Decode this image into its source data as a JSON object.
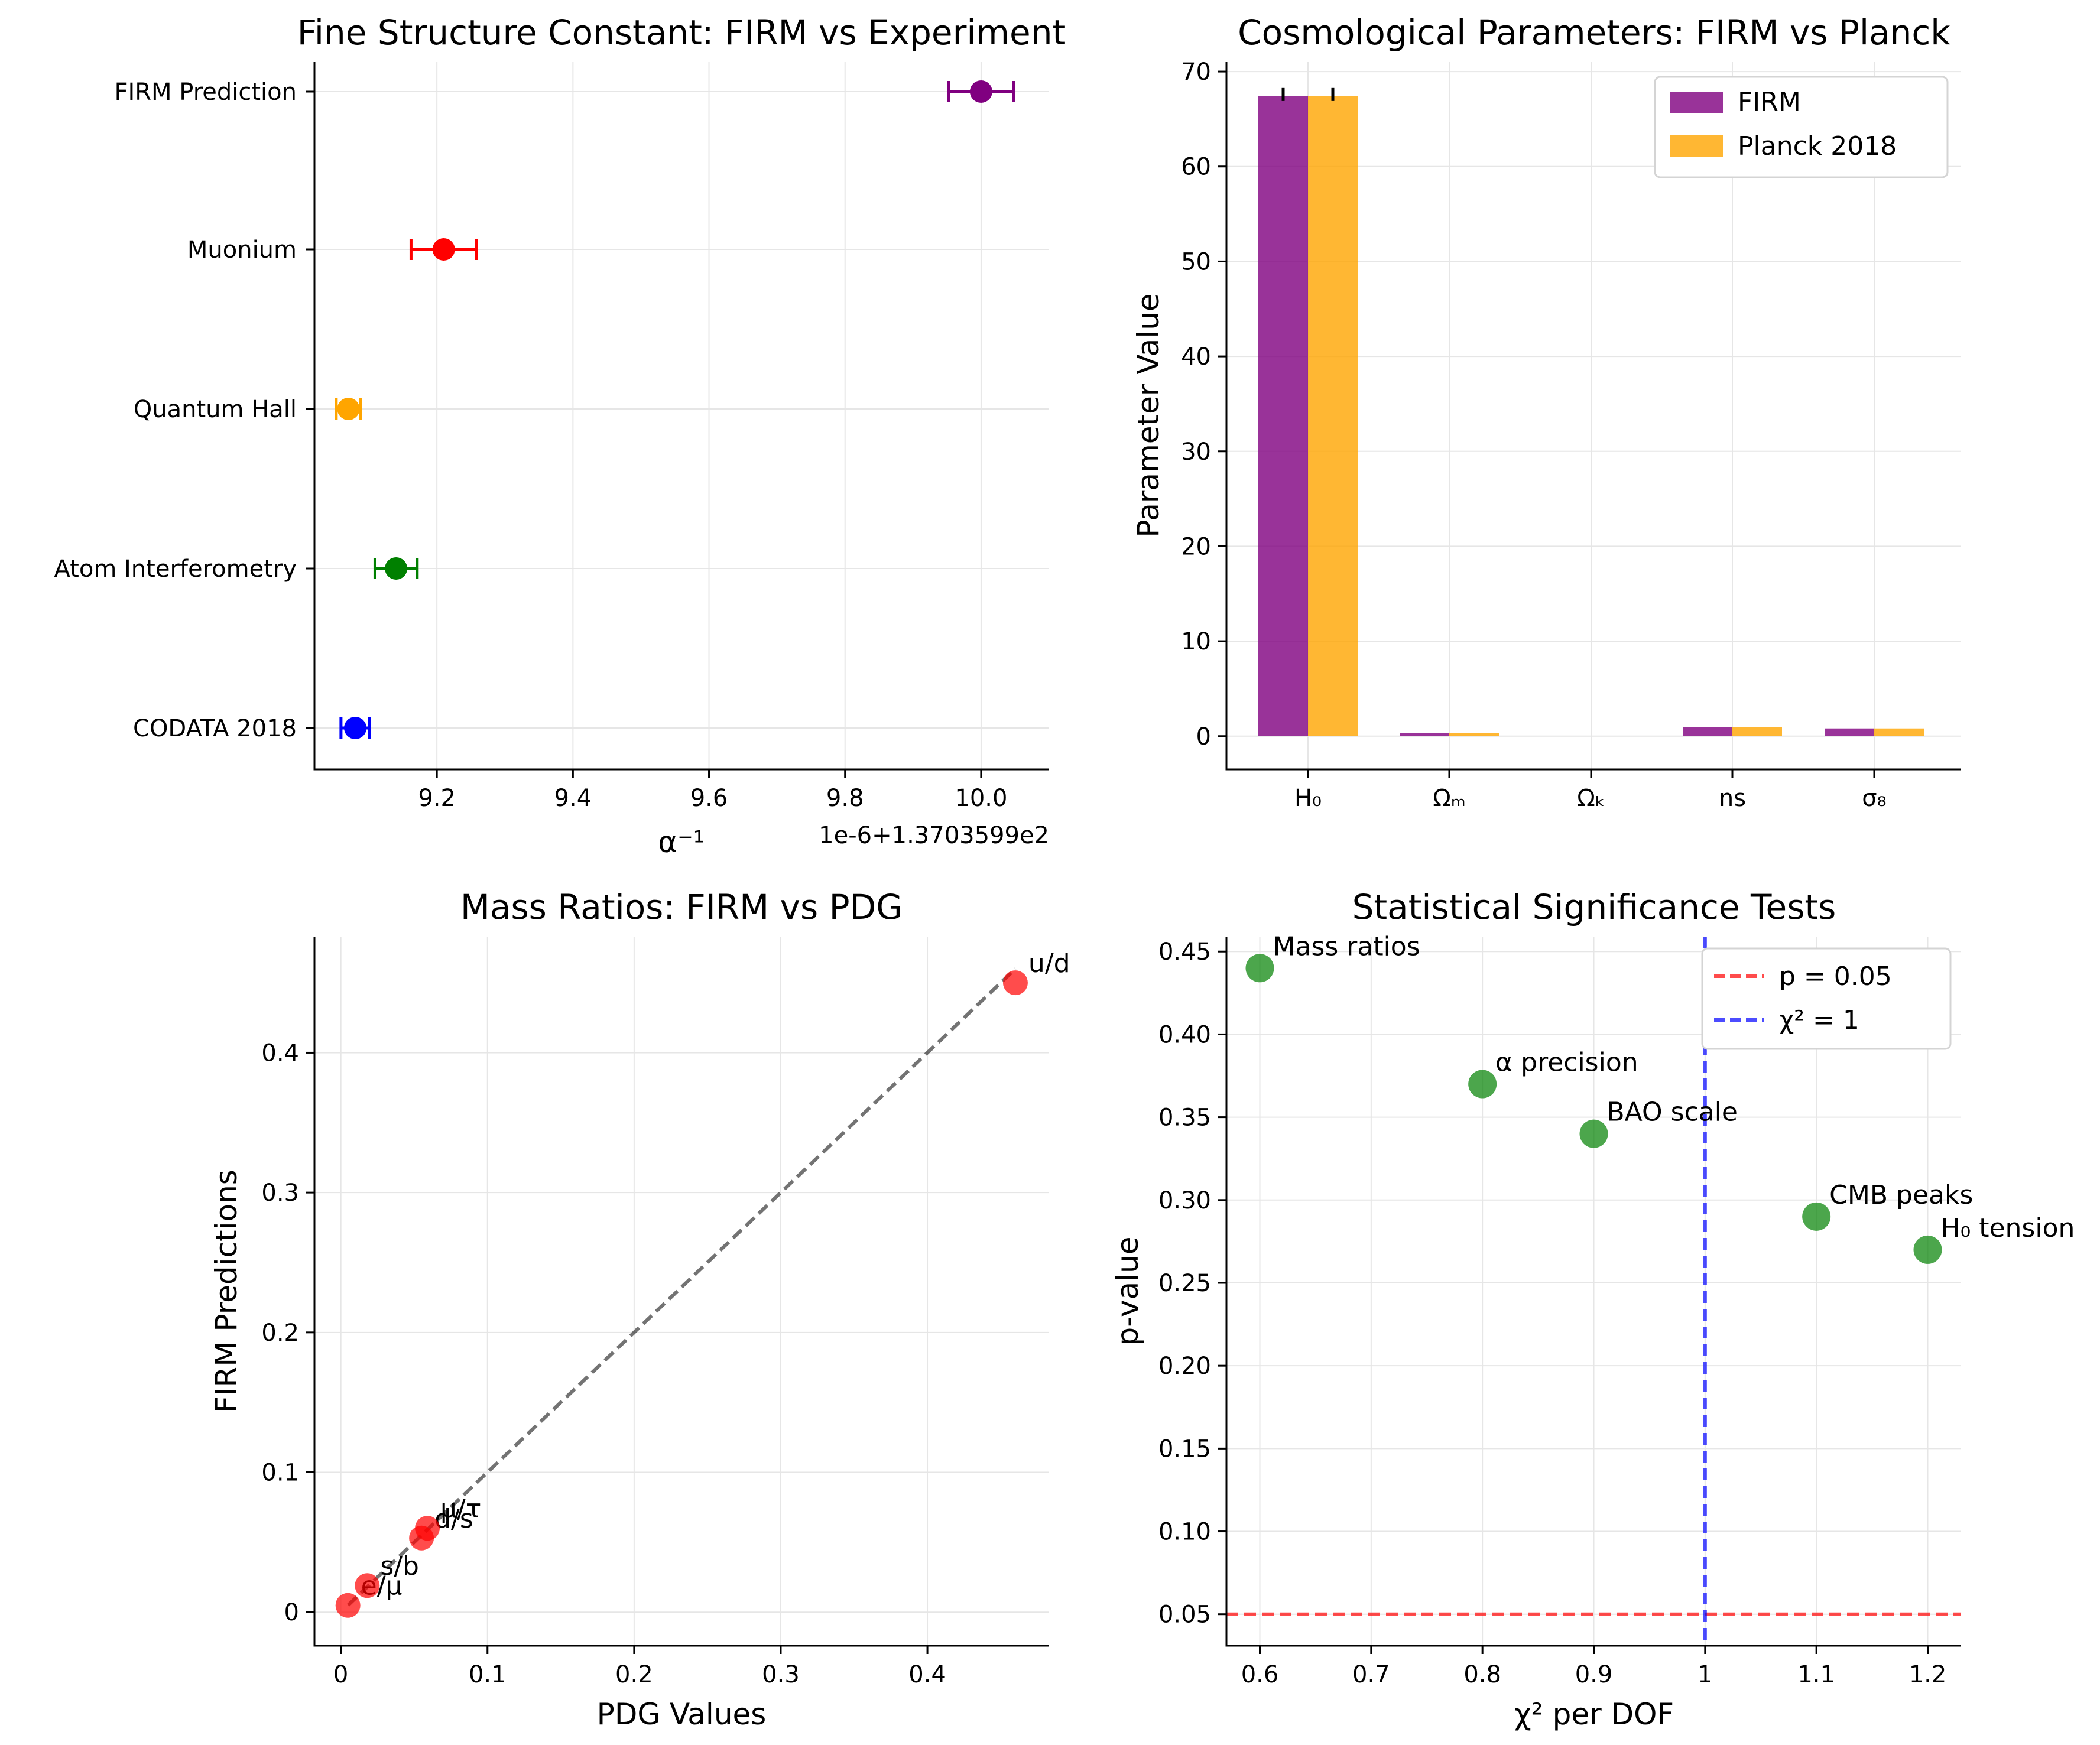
{
  "chart_data": [
    {
      "type": "errorbar",
      "title": "Fine Structure Constant: FIRM vs Experiment",
      "xlabel": "α⁻¹",
      "offset_label": "1e-6+1.3703599e2",
      "xlim": [
        9.02,
        10.1
      ],
      "xticks": [
        9.2,
        9.4,
        9.6,
        9.8,
        10.0
      ],
      "xtick_labels": [
        "9.2",
        "9.4",
        "9.6",
        "9.8",
        "10.0"
      ],
      "points": [
        {
          "label": "CODATA 2018",
          "x": 9.08,
          "err": 0.021,
          "color": "#0000ff"
        },
        {
          "label": "Atom Interferometry",
          "x": 9.14,
          "err": 0.031,
          "color": "#008000"
        },
        {
          "label": "Quantum Hall",
          "x": 9.07,
          "err": 0.018,
          "color": "#ffa500"
        },
        {
          "label": "Muonium",
          "x": 9.21,
          "err": 0.048,
          "color": "#ff0000"
        },
        {
          "label": "FIRM Prediction",
          "x": 10.0,
          "err": 0.048,
          "color": "#800080"
        }
      ]
    },
    {
      "type": "bar",
      "title": "Cosmological Parameters: FIRM vs Planck",
      "ylabel": "Parameter Value",
      "categories": [
        "H₀",
        "Ωₘ",
        "Ωₖ",
        "ns",
        "σ₈"
      ],
      "ylim": [
        -3.5,
        71
      ],
      "yticks": [
        0,
        10,
        20,
        30,
        40,
        50,
        60,
        70
      ],
      "series": [
        {
          "name": "FIRM",
          "color": "#800080",
          "values": [
            67.4,
            0.315,
            0.0,
            0.965,
            0.811
          ],
          "errors": [
            0.5,
            0,
            0,
            0,
            0
          ]
        },
        {
          "name": "Planck 2018",
          "color": "#ffa500",
          "values": [
            67.4,
            0.315,
            0.0,
            0.965,
            0.811
          ],
          "errors": [
            0.5,
            0,
            0,
            0,
            0
          ]
        }
      ]
    },
    {
      "type": "scatter",
      "title": "Mass Ratios: FIRM vs PDG",
      "xlabel": "PDG Values",
      "ylabel": "FIRM Predictions",
      "xlim": [
        -0.018,
        0.483
      ],
      "ylim": [
        -0.024,
        0.483
      ],
      "xticks": [
        0.0,
        0.1,
        0.2,
        0.3,
        0.4
      ],
      "yticks": [
        0.0,
        0.1,
        0.2,
        0.3,
        0.4
      ],
      "points": [
        {
          "label": "e/μ",
          "x": 0.00484,
          "y": 0.00484
        },
        {
          "label": "s/b",
          "x": 0.018,
          "y": 0.019
        },
        {
          "label": "d/s",
          "x": 0.055,
          "y": 0.053
        },
        {
          "label": "μ/τ",
          "x": 0.059,
          "y": 0.06
        },
        {
          "label": "u/d",
          "x": 0.46,
          "y": 0.45
        }
      ],
      "reference_line": {
        "from": [
          0.005,
          0.005
        ],
        "to": [
          0.46,
          0.46
        ]
      }
    },
    {
      "type": "scatter",
      "title": "Statistical Significance Tests",
      "xlabel": "χ² per DOF",
      "ylabel": "p-value",
      "xlim": [
        0.57,
        1.23
      ],
      "ylim": [
        0.031,
        0.459
      ],
      "xticks": [
        0.6,
        0.7,
        0.8,
        0.9,
        1.0,
        1.1,
        1.2
      ],
      "yticks": [
        0.05,
        0.1,
        0.15,
        0.2,
        0.25,
        0.3,
        0.35,
        0.4,
        0.45
      ],
      "points": [
        {
          "label": "Mass ratios",
          "x": 0.6,
          "y": 0.44
        },
        {
          "label": "α precision",
          "x": 0.8,
          "y": 0.37
        },
        {
          "label": "BAO scale",
          "x": 0.9,
          "y": 0.34
        },
        {
          "label": "CMB peaks",
          "x": 1.1,
          "y": 0.29
        },
        {
          "label": "H₀ tension",
          "x": 1.2,
          "y": 0.27
        }
      ],
      "hline": {
        "y": 0.05,
        "label": "p = 0.05",
        "color": "#ff0000"
      },
      "vline": {
        "x": 1.0,
        "label": "χ² = 1",
        "color": "#0000ff"
      }
    }
  ]
}
